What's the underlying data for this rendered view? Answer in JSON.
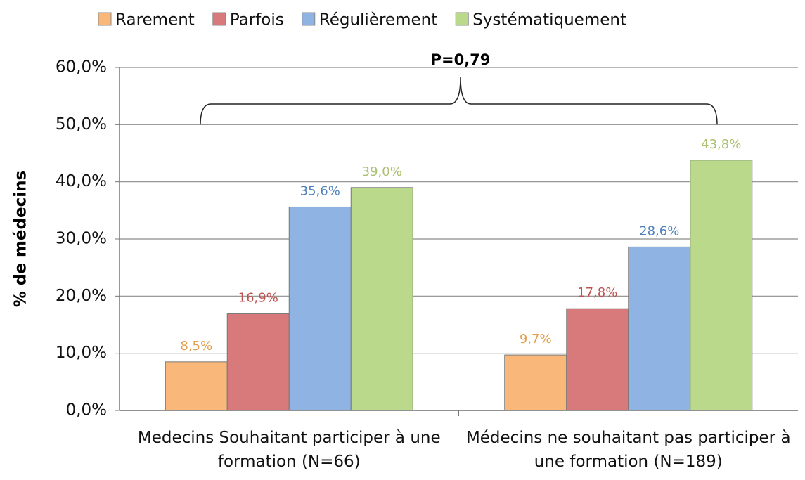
{
  "chart_data": {
    "type": "bar",
    "categories": [
      "Medecins Souhaitant participer à une formation (N=66)",
      "Médecins ne souhaitant pas participer à une formation (N=189)"
    ],
    "series": [
      {
        "name": "Rarement",
        "color": "#f9b77a",
        "label_color": "#e3a04f",
        "values": [
          8.5,
          9.7
        ],
        "value_labels": [
          "8,5%",
          "9,7%"
        ]
      },
      {
        "name": "Parfois",
        "color": "#d87a7c",
        "label_color": "#c0504d",
        "values": [
          16.9,
          17.8
        ],
        "value_labels": [
          "16,9%",
          "17,8%"
        ]
      },
      {
        "name": "Régulièrement",
        "color": "#8fb3e2",
        "label_color": "#4f81bd",
        "values": [
          35.6,
          28.6
        ],
        "value_labels": [
          "35,6%",
          "28,6%"
        ]
      },
      {
        "name": "Systématiquement",
        "color": "#bad98b",
        "label_color": "#a8c070",
        "values": [
          39.0,
          43.8
        ],
        "value_labels": [
          "39,0%",
          "43,8%"
        ]
      }
    ],
    "y_label": "% de médecins",
    "annotation": "P=0,79",
    "ylim": [
      0,
      60
    ],
    "yticks": [
      {
        "value": 0,
        "label": "0,0%"
      },
      {
        "value": 10,
        "label": "10,0%"
      },
      {
        "value": 20,
        "label": "20,0%"
      },
      {
        "value": 30,
        "label": "30,0%"
      },
      {
        "value": 40,
        "label": "40,0%"
      },
      {
        "value": 50,
        "label": "50,0%"
      },
      {
        "value": 60,
        "label": "60,0%"
      }
    ],
    "grid": true,
    "legend": "top"
  }
}
